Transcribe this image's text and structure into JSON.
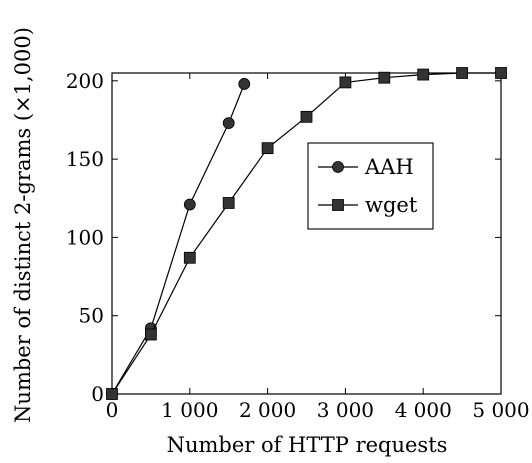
{
  "chart_data": {
    "type": "line",
    "xlabel": "Number of HTTP requests",
    "ylabel": "Number of distinct 2-grams (×1,000)",
    "xlim": [
      0,
      5000
    ],
    "ylim": [
      0,
      205
    ],
    "x_ticks": [
      0,
      1000,
      2000,
      3000,
      4000,
      5000
    ],
    "x_tick_labels": [
      "0",
      "1 000",
      "2 000",
      "3 000",
      "4 000",
      "5 000"
    ],
    "y_ticks": [
      0,
      50,
      100,
      150,
      200
    ],
    "y_tick_labels": [
      "0",
      "50",
      "100",
      "150",
      "200"
    ],
    "grid": false,
    "legend_position": "center-right",
    "series": [
      {
        "name": "AAH",
        "marker": "circle",
        "color": "#000000",
        "marker_color": "#333333",
        "x": [
          0,
          500,
          1000,
          1500,
          1700
        ],
        "y": [
          0,
          42,
          121,
          173,
          198
        ]
      },
      {
        "name": "wget",
        "marker": "square",
        "color": "#000000",
        "marker_color": "#333333",
        "x": [
          0,
          500,
          1000,
          1500,
          2000,
          2500,
          3000,
          3500,
          4000,
          4500,
          5000
        ],
        "y": [
          0,
          38,
          87,
          122,
          157,
          177,
          199,
          202,
          204,
          205,
          205
        ]
      }
    ]
  }
}
